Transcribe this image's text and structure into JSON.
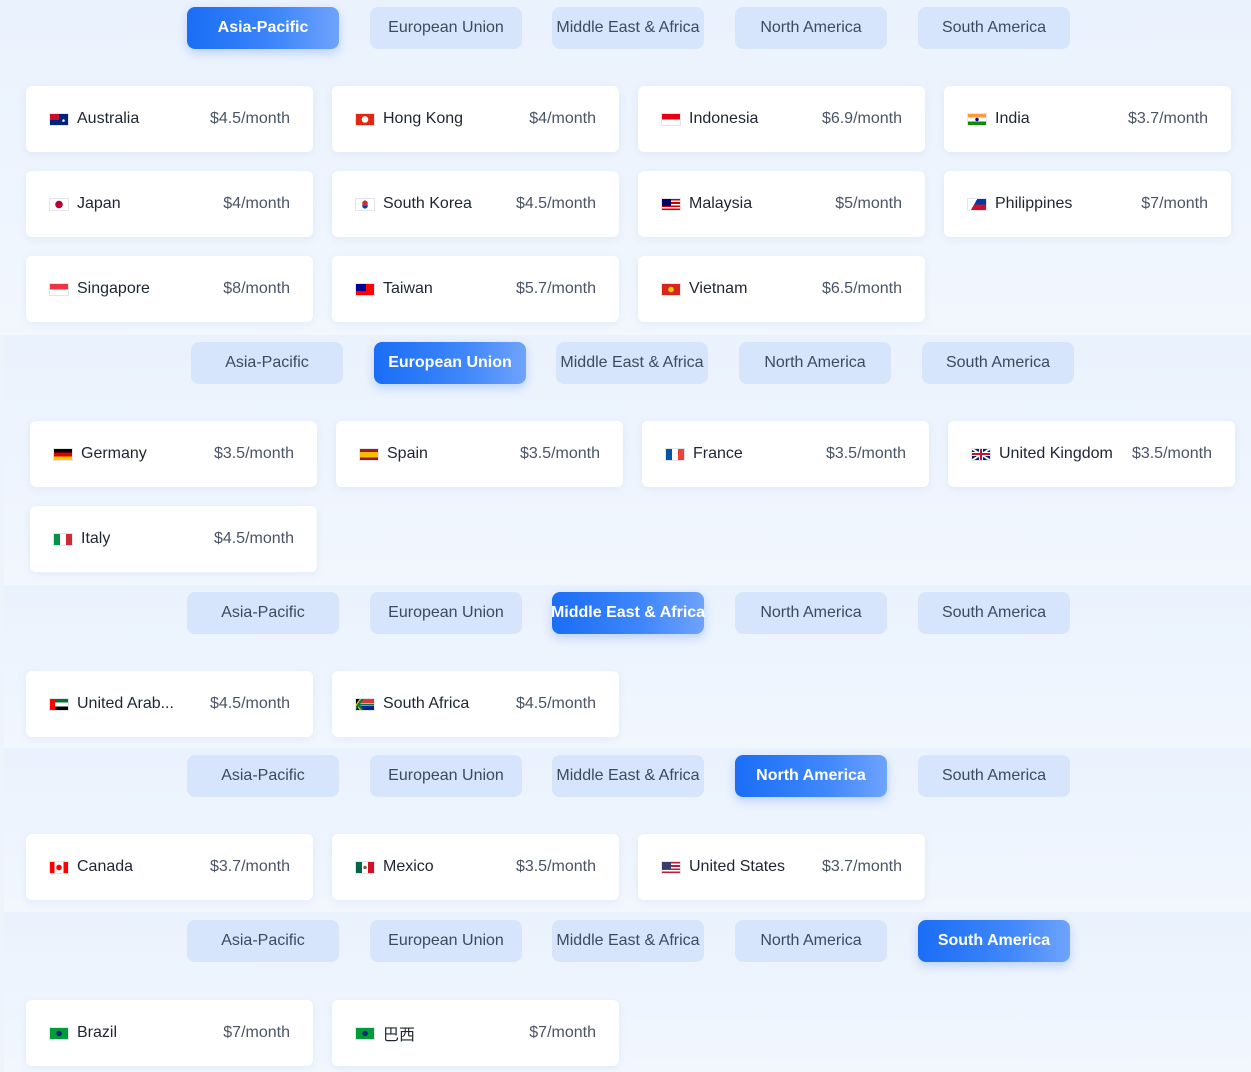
{
  "tab_labels": [
    "Asia-Pacific",
    "European Union",
    "Middle East & Africa",
    "North America",
    "South America"
  ],
  "colors": {
    "accent": "#1a6df5",
    "tab_inactive": "#d6e5fb",
    "card_bg": "#ffffff",
    "page_bg": "#eef4fc"
  },
  "sections": [
    {
      "active_tab": "Asia-Pacific",
      "countries": [
        {
          "flag": "au-flag",
          "name": "Australia",
          "price": "$4.5/month"
        },
        {
          "flag": "hk-flag",
          "name": "Hong Kong",
          "price": "$4/month"
        },
        {
          "flag": "id-flag",
          "name": "Indonesia",
          "price": "$6.9/month"
        },
        {
          "flag": "in-flag",
          "name": "India",
          "price": "$3.7/month"
        },
        {
          "flag": "jp-flag",
          "name": "Japan",
          "price": "$4/month"
        },
        {
          "flag": "kr-flag",
          "name": "South Korea",
          "price": "$4.5/month"
        },
        {
          "flag": "my-flag",
          "name": "Malaysia",
          "price": "$5/month"
        },
        {
          "flag": "ph-flag",
          "name": "Philippines",
          "price": "$7/month"
        },
        {
          "flag": "sg-flag",
          "name": "Singapore",
          "price": "$8/month"
        },
        {
          "flag": "tw-flag",
          "name": "Taiwan",
          "price": "$5.7/month"
        },
        {
          "flag": "vn-flag",
          "name": "Vietnam",
          "price": "$6.5/month"
        }
      ]
    },
    {
      "active_tab": "European Union",
      "countries": [
        {
          "flag": "de-flag",
          "name": "Germany",
          "price": "$3.5/month"
        },
        {
          "flag": "es-flag",
          "name": "Spain",
          "price": "$3.5/month"
        },
        {
          "flag": "fr-flag",
          "name": "France",
          "price": "$3.5/month"
        },
        {
          "flag": "gb-flag",
          "name": "United Kingdom",
          "price": "$3.5/month"
        },
        {
          "flag": "it-flag",
          "name": "Italy",
          "price": "$4.5/month"
        }
      ]
    },
    {
      "active_tab": "Middle East & Africa",
      "countries": [
        {
          "flag": "ae-flag",
          "name": "United Arab...",
          "price": "$4.5/month"
        },
        {
          "flag": "za-flag",
          "name": "South Africa",
          "price": "$4.5/month"
        }
      ]
    },
    {
      "active_tab": "North America",
      "countries": [
        {
          "flag": "ca-flag",
          "name": "Canada",
          "price": "$3.7/month"
        },
        {
          "flag": "mx-flag",
          "name": "Mexico",
          "price": "$3.5/month"
        },
        {
          "flag": "us-flag",
          "name": "United States",
          "price": "$3.7/month"
        }
      ]
    },
    {
      "active_tab": "South America",
      "countries": [
        {
          "flag": "br-flag",
          "name": "Brazil",
          "price": "$7/month"
        },
        {
          "flag": "br-flag",
          "name": "巴西",
          "price": "$7/month"
        }
      ]
    }
  ]
}
